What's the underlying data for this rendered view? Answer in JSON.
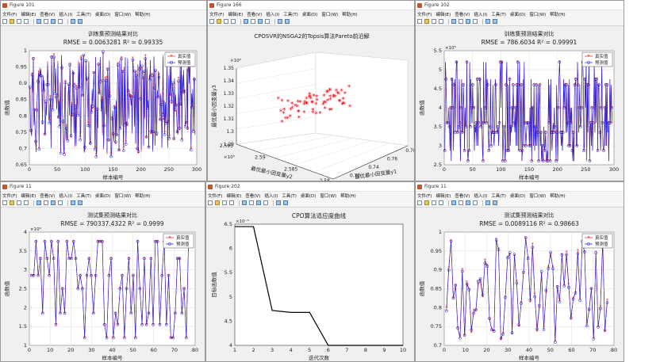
{
  "menus": [
    "文件(F)",
    "编辑(E)",
    "查看(V)",
    "插入(I)",
    "工具(T)",
    "桌面(D)",
    "窗口(W)",
    "帮助(H)"
  ],
  "windows": [
    {
      "id": "w101",
      "title": "Figure 101",
      "chart": {
        "type": "line",
        "title": "训练集预测结果对比",
        "subtitle": "RMSE = 0.0063281 R² = 0.99335",
        "xlabel": "样本编号",
        "ylabel": "函数值",
        "xlim": [
          0,
          300
        ],
        "ylim": [
          0.65,
          1.0
        ],
        "xticks": [
          "0",
          "50",
          "100",
          "150",
          "200",
          "250",
          "300"
        ],
        "yticks": [
          "0.65",
          "0.7",
          "0.75",
          "0.8",
          "0.85",
          "0.9",
          "0.95",
          "1"
        ],
        "legend": [
          "真实值",
          "预测值"
        ],
        "n": 290,
        "seed": 11,
        "ymin": 0.68,
        "ymax": 0.99,
        "mode": "cont",
        "levels": []
      }
    },
    {
      "id": "w166",
      "title": "Figure 166",
      "chart": {
        "type": "scatter3d",
        "title": "CPOSVR的NSGA2的Topsis算法Pareto前沿解",
        "xlabel": "最优最小因变量y1",
        "ylabel": "最优最小因变量y2",
        "zlabel": "最优最小因变量y3",
        "xticks": [
          "0.7",
          "0.72",
          "0.74",
          "0.76",
          "0.78"
        ],
        "yticks": [
          "2.58",
          "2.585",
          "2.59",
          "2.595"
        ],
        "zticks": [
          "1.29",
          "1.3",
          "1.31",
          "1.32",
          "1.33",
          "1.34",
          "1.35"
        ],
        "yexp": "×10⁵",
        "zexp": "×10⁶",
        "n": 70,
        "seed": 5
      }
    },
    {
      "id": "w102",
      "title": "Figure 102",
      "chart": {
        "type": "line",
        "title": "训练集预测结果对比",
        "subtitle": "RMSE = 786.6034 R² = 0.99991",
        "xlabel": "样本编号",
        "ylabel": "函数值",
        "xlim": [
          0,
          300
        ],
        "ylim": [
          2.5,
          5.5
        ],
        "yexp": "×10⁵",
        "xticks": [
          "0",
          "50",
          "100",
          "150",
          "200",
          "250",
          "300"
        ],
        "yticks": [
          "2.5",
          "3",
          "3.5",
          "4",
          "4.5",
          "5",
          "5.5"
        ],
        "legend": [
          "真实值",
          "预测值"
        ],
        "n": 290,
        "seed": 23,
        "ymin": 2.6,
        "ymax": 5.2,
        "mode": "levels",
        "levels": [
          2.6,
          2.87,
          3.0,
          3.35,
          3.5,
          3.6,
          4.0,
          4.6,
          4.75,
          5.2
        ]
      }
    },
    {
      "id": "w11a",
      "title": "Figure 11",
      "chart": {
        "type": "line",
        "title": "测试集预测结果对比",
        "subtitle": "RMSE = 790337.4322 R² = 0.9999",
        "xlabel": "样本编号",
        "ylabel": "函数值",
        "xlim": [
          0,
          80
        ],
        "ylim": [
          1.0,
          4.0
        ],
        "yexp": "×10⁶",
        "xticks": [
          "0",
          "10",
          "20",
          "30",
          "40",
          "50",
          "60",
          "70",
          "80"
        ],
        "yticks": [
          "1",
          "1.5",
          "2",
          "2.5",
          "3",
          "3.5",
          "4"
        ],
        "legend": [
          "真实值",
          "预测值"
        ],
        "n": 72,
        "seed": 37,
        "ymin": 1.2,
        "ymax": 3.75,
        "mode": "levels",
        "levels": [
          1.2,
          1.55,
          1.85,
          2.5,
          2.85,
          3.3,
          3.75
        ]
      }
    },
    {
      "id": "w202",
      "title": "Figure 202",
      "chart": {
        "type": "step",
        "title": "CPO算法适应度曲线",
        "xlabel": "迭代次数",
        "ylabel": "目标函数值",
        "xlim": [
          1,
          10
        ],
        "ylim": [
          4,
          6.5
        ],
        "yexp": "×10⁻⁵",
        "xticks": [
          "1",
          "2",
          "3",
          "4",
          "5",
          "6",
          "7",
          "8",
          "9",
          "10"
        ],
        "yticks": [
          "4",
          "4.5",
          "5",
          "5.5",
          "6",
          "6.5"
        ],
        "x": [
          1,
          2,
          3,
          4,
          5,
          6,
          7,
          8,
          9,
          10
        ],
        "values": [
          6.45,
          6.45,
          4.72,
          4.68,
          4.68,
          4.0,
          4.0,
          4.0,
          4.0,
          4.0
        ]
      }
    },
    {
      "id": "w11b",
      "title": "Figure 11",
      "chart": {
        "type": "line",
        "title": "测试集预测结果对比",
        "subtitle": "RMSE = 0.0089116 R² = 0.98663",
        "xlabel": "样本编号",
        "ylabel": "函数值",
        "xlim": [
          0,
          80
        ],
        "ylim": [
          0.7,
          1.0
        ],
        "xticks": [
          "0",
          "10",
          "20",
          "30",
          "40",
          "50",
          "60",
          "70",
          "80"
        ],
        "yticks": [
          "0.7",
          "0.75",
          "0.8",
          "0.85",
          "0.9",
          "0.95",
          "1"
        ],
        "legend": [
          "真实值",
          "预测值"
        ],
        "n": 72,
        "seed": 53,
        "ymin": 0.71,
        "ymax": 0.985,
        "mode": "cont",
        "levels": []
      }
    }
  ]
}
